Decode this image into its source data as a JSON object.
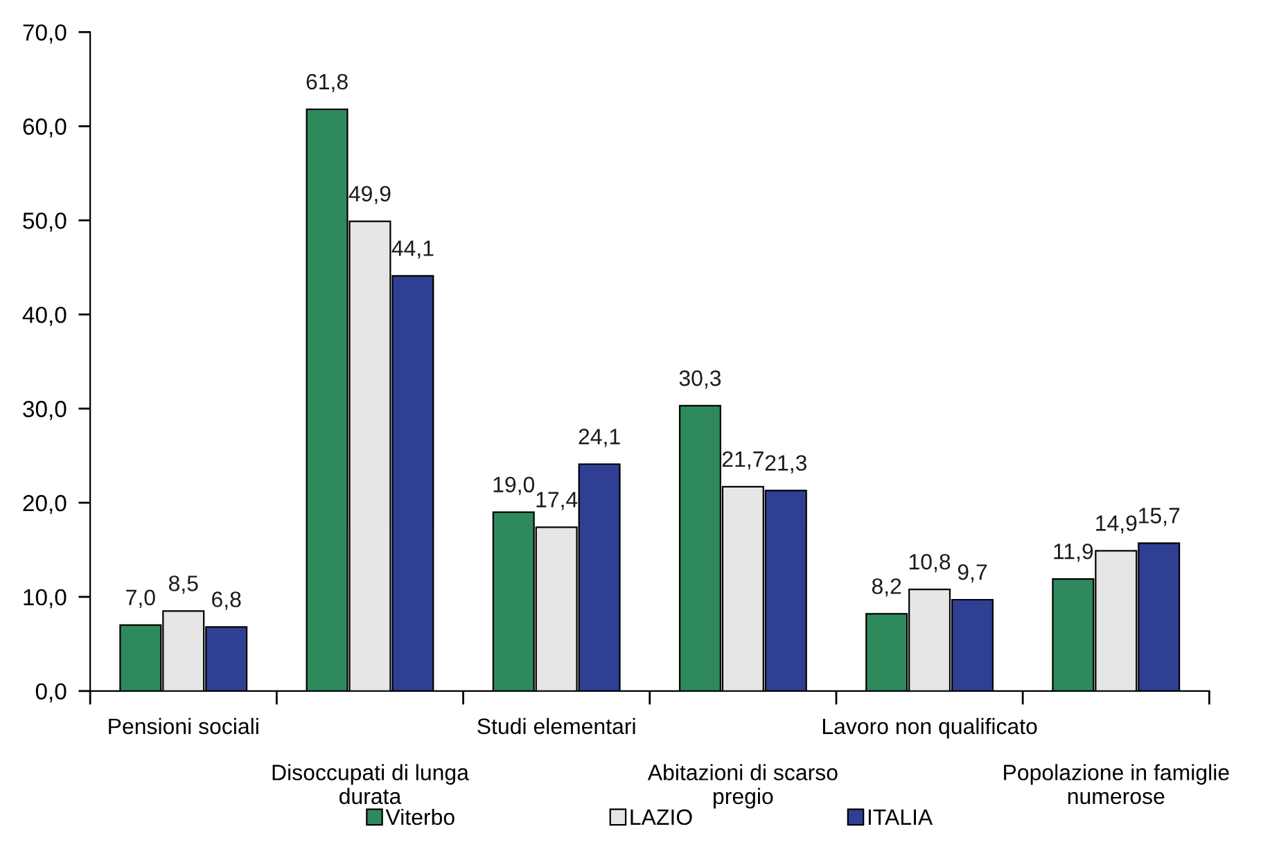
{
  "chart_data": {
    "type": "bar",
    "categories": [
      "Pensioni sociali",
      "Disoccupati di lunga\ndurata",
      "Studi elementari",
      "Abitazioni di scarso\npregio",
      "Lavoro non qualificato",
      "Popolazione in famiglie\nnumerose"
    ],
    "series": [
      {
        "name": "Viterbo",
        "color": "#2e8a5c",
        "values": [
          7.0,
          61.8,
          19.0,
          30.3,
          8.2,
          11.9
        ],
        "value_labels": [
          "7,0",
          "61,8",
          "19,0",
          "30,3",
          "8,2",
          "11,9"
        ]
      },
      {
        "name": "LAZIO",
        "color": "#e6e6e6",
        "values": [
          8.5,
          49.9,
          17.4,
          21.7,
          10.8,
          14.9
        ],
        "value_labels": [
          "8,5",
          "49,9",
          "17,4",
          "21,7",
          "10,8",
          "14,9"
        ]
      },
      {
        "name": "ITALIA",
        "color": "#2f3f94",
        "values": [
          6.8,
          44.1,
          24.1,
          21.3,
          9.7,
          15.7
        ],
        "value_labels": [
          "6,8",
          "44,1",
          "24,1",
          "21,3",
          "9,7",
          "15,7"
        ]
      }
    ],
    "ylim": [
      0,
      70
    ],
    "yticks": [
      {
        "value": 0,
        "label": "0,0"
      },
      {
        "value": 10,
        "label": "10,0"
      },
      {
        "value": 20,
        "label": "20,0"
      },
      {
        "value": 30,
        "label": "30,0"
      },
      {
        "value": 40,
        "label": "40,0"
      },
      {
        "value": 50,
        "label": "50,0"
      },
      {
        "value": 60,
        "label": "60,0"
      },
      {
        "value": 70,
        "label": "70,0"
      }
    ],
    "grid": false,
    "legend": "bottom"
  }
}
